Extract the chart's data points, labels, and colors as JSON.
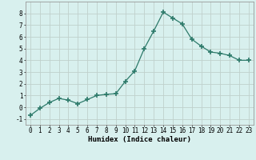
{
  "x": [
    0,
    1,
    2,
    3,
    4,
    5,
    6,
    7,
    8,
    9,
    10,
    11,
    12,
    13,
    14,
    15,
    16,
    17,
    18,
    19,
    20,
    21,
    22,
    23
  ],
  "y": [
    -0.7,
    -0.1,
    0.4,
    0.75,
    0.6,
    0.3,
    0.65,
    1.0,
    1.1,
    1.15,
    2.2,
    3.1,
    5.0,
    6.5,
    8.1,
    7.6,
    7.1,
    5.8,
    5.2,
    4.7,
    4.6,
    4.4,
    4.0,
    4.0
  ],
  "line_color": "#2d7a6a",
  "marker": "+",
  "marker_size": 4,
  "bg_color": "#d8f0ee",
  "grid_color": "#c0d0cc",
  "xlabel": "Humidex (Indice chaleur)",
  "xlim": [
    -0.5,
    23.5
  ],
  "ylim": [
    -1.5,
    9.0
  ],
  "yticks": [
    -1,
    0,
    1,
    2,
    3,
    4,
    5,
    6,
    7,
    8
  ],
  "xticks": [
    0,
    1,
    2,
    3,
    4,
    5,
    6,
    7,
    8,
    9,
    10,
    11,
    12,
    13,
    14,
    15,
    16,
    17,
    18,
    19,
    20,
    21,
    22,
    23
  ],
  "label_fontsize": 6.5,
  "tick_fontsize": 5.5
}
